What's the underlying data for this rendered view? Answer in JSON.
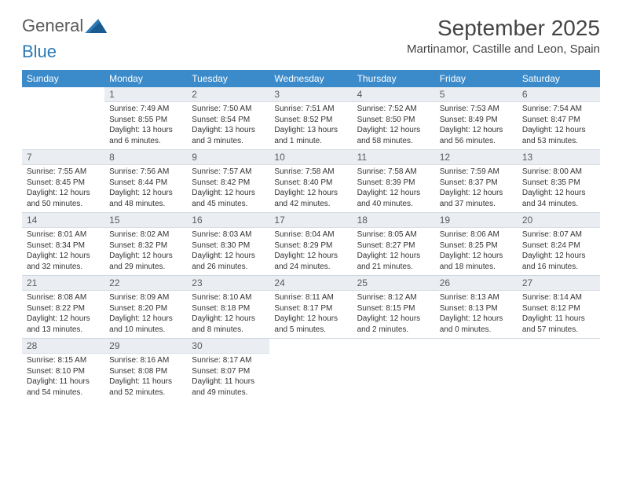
{
  "logo": {
    "part1": "General",
    "part2": "Blue"
  },
  "title": "September 2025",
  "location": "Martinamor, Castille and Leon, Spain",
  "colors": {
    "header_bg": "#3b8aca",
    "header_text": "#ffffff",
    "daynum_bg": "#eaeef2",
    "border": "#cfd8e0",
    "body_text": "#333333",
    "title_text": "#444444",
    "logo_gray": "#5a5a5a",
    "logo_blue": "#2a7ab8"
  },
  "day_names": [
    "Sunday",
    "Monday",
    "Tuesday",
    "Wednesday",
    "Thursday",
    "Friday",
    "Saturday"
  ],
  "weeks": [
    [
      null,
      {
        "n": "1",
        "sr": "7:49 AM",
        "ss": "8:55 PM",
        "dl": "13 hours and 6 minutes."
      },
      {
        "n": "2",
        "sr": "7:50 AM",
        "ss": "8:54 PM",
        "dl": "13 hours and 3 minutes."
      },
      {
        "n": "3",
        "sr": "7:51 AM",
        "ss": "8:52 PM",
        "dl": "13 hours and 1 minute."
      },
      {
        "n": "4",
        "sr": "7:52 AM",
        "ss": "8:50 PM",
        "dl": "12 hours and 58 minutes."
      },
      {
        "n": "5",
        "sr": "7:53 AM",
        "ss": "8:49 PM",
        "dl": "12 hours and 56 minutes."
      },
      {
        "n": "6",
        "sr": "7:54 AM",
        "ss": "8:47 PM",
        "dl": "12 hours and 53 minutes."
      }
    ],
    [
      {
        "n": "7",
        "sr": "7:55 AM",
        "ss": "8:45 PM",
        "dl": "12 hours and 50 minutes."
      },
      {
        "n": "8",
        "sr": "7:56 AM",
        "ss": "8:44 PM",
        "dl": "12 hours and 48 minutes."
      },
      {
        "n": "9",
        "sr": "7:57 AM",
        "ss": "8:42 PM",
        "dl": "12 hours and 45 minutes."
      },
      {
        "n": "10",
        "sr": "7:58 AM",
        "ss": "8:40 PM",
        "dl": "12 hours and 42 minutes."
      },
      {
        "n": "11",
        "sr": "7:58 AM",
        "ss": "8:39 PM",
        "dl": "12 hours and 40 minutes."
      },
      {
        "n": "12",
        "sr": "7:59 AM",
        "ss": "8:37 PM",
        "dl": "12 hours and 37 minutes."
      },
      {
        "n": "13",
        "sr": "8:00 AM",
        "ss": "8:35 PM",
        "dl": "12 hours and 34 minutes."
      }
    ],
    [
      {
        "n": "14",
        "sr": "8:01 AM",
        "ss": "8:34 PM",
        "dl": "12 hours and 32 minutes."
      },
      {
        "n": "15",
        "sr": "8:02 AM",
        "ss": "8:32 PM",
        "dl": "12 hours and 29 minutes."
      },
      {
        "n": "16",
        "sr": "8:03 AM",
        "ss": "8:30 PM",
        "dl": "12 hours and 26 minutes."
      },
      {
        "n": "17",
        "sr": "8:04 AM",
        "ss": "8:29 PM",
        "dl": "12 hours and 24 minutes."
      },
      {
        "n": "18",
        "sr": "8:05 AM",
        "ss": "8:27 PM",
        "dl": "12 hours and 21 minutes."
      },
      {
        "n": "19",
        "sr": "8:06 AM",
        "ss": "8:25 PM",
        "dl": "12 hours and 18 minutes."
      },
      {
        "n": "20",
        "sr": "8:07 AM",
        "ss": "8:24 PM",
        "dl": "12 hours and 16 minutes."
      }
    ],
    [
      {
        "n": "21",
        "sr": "8:08 AM",
        "ss": "8:22 PM",
        "dl": "12 hours and 13 minutes."
      },
      {
        "n": "22",
        "sr": "8:09 AM",
        "ss": "8:20 PM",
        "dl": "12 hours and 10 minutes."
      },
      {
        "n": "23",
        "sr": "8:10 AM",
        "ss": "8:18 PM",
        "dl": "12 hours and 8 minutes."
      },
      {
        "n": "24",
        "sr": "8:11 AM",
        "ss": "8:17 PM",
        "dl": "12 hours and 5 minutes."
      },
      {
        "n": "25",
        "sr": "8:12 AM",
        "ss": "8:15 PM",
        "dl": "12 hours and 2 minutes."
      },
      {
        "n": "26",
        "sr": "8:13 AM",
        "ss": "8:13 PM",
        "dl": "12 hours and 0 minutes."
      },
      {
        "n": "27",
        "sr": "8:14 AM",
        "ss": "8:12 PM",
        "dl": "11 hours and 57 minutes."
      }
    ],
    [
      {
        "n": "28",
        "sr": "8:15 AM",
        "ss": "8:10 PM",
        "dl": "11 hours and 54 minutes."
      },
      {
        "n": "29",
        "sr": "8:16 AM",
        "ss": "8:08 PM",
        "dl": "11 hours and 52 minutes."
      },
      {
        "n": "30",
        "sr": "8:17 AM",
        "ss": "8:07 PM",
        "dl": "11 hours and 49 minutes."
      },
      null,
      null,
      null,
      null
    ]
  ],
  "labels": {
    "sunrise": "Sunrise:",
    "sunset": "Sunset:",
    "daylight": "Daylight:"
  }
}
